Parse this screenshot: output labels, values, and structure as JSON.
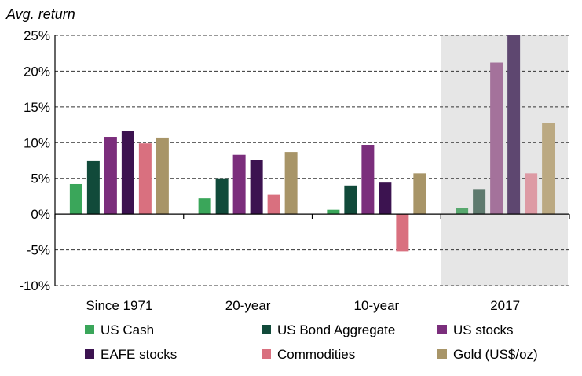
{
  "chart_data": {
    "type": "bar",
    "title": "Avg.  return",
    "xlabel": "",
    "ylabel": "Avg.  return",
    "ylim": [
      -10,
      25
    ],
    "yticks": [
      25,
      20,
      15,
      10,
      5,
      0,
      -5,
      -10
    ],
    "ytick_labels": [
      "25%",
      "20%",
      "15%",
      "10%",
      "5%",
      "0%",
      "-5%",
      "-10%"
    ],
    "grid": "horizontal dashed",
    "categories": [
      "Since 1971",
      "20-year",
      "10-year",
      "2017"
    ],
    "highlight_category": "2017",
    "highlight_color": "#e6e6e6",
    "series": [
      {
        "name": "US Cash",
        "color": "#3aa65a",
        "values": [
          4.2,
          2.2,
          0.6,
          0.8
        ]
      },
      {
        "name": "US Bond Aggregate",
        "color": "#114a3a",
        "values": [
          7.4,
          5.0,
          4.0,
          3.5
        ]
      },
      {
        "name": "US stocks",
        "color": "#7b2e7c",
        "values": [
          10.8,
          8.3,
          9.7,
          21.2
        ]
      },
      {
        "name": "EAFE stocks",
        "color": "#3c1350",
        "values": [
          11.6,
          7.5,
          4.4,
          25.0
        ]
      },
      {
        "name": "Commodities",
        "color": "#d9707f",
        "values": [
          9.9,
          2.7,
          -5.2,
          5.7
        ]
      },
      {
        "name": "Gold (US$/oz)",
        "color": "#a89568",
        "values": [
          10.7,
          8.7,
          5.7,
          12.7
        ]
      }
    ],
    "highlight_series_colors": [
      "#58a86e",
      "#5e7a6e",
      "#a4729b",
      "#5e4770",
      "#dd9aa4",
      "#bba982"
    ],
    "legend": "bottom, 3 columns"
  }
}
